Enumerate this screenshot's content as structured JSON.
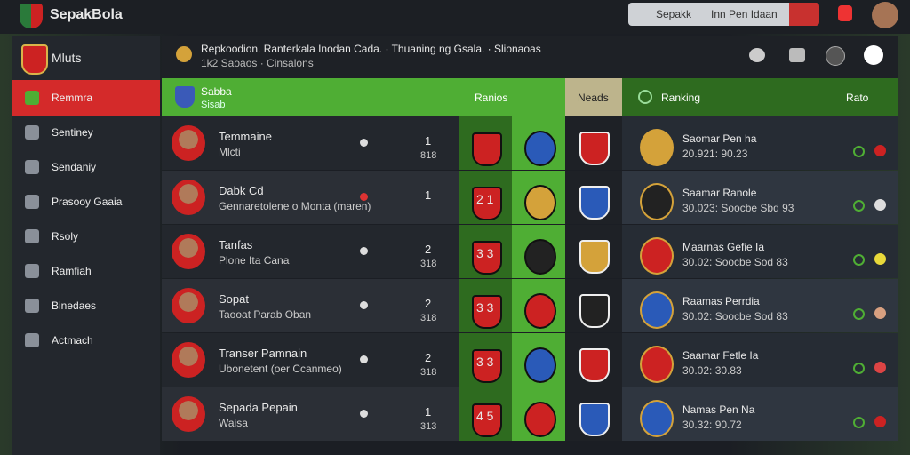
{
  "header": {
    "app_title": "SepakBola",
    "search_left": "Sepakk",
    "search_right": "Inn Pen Idaan"
  },
  "sidebar": {
    "title": "Mluts",
    "items": [
      "Remmra",
      "Sentiney",
      "Sendaniy",
      "Prasooy Gaaia",
      "Rsoly",
      "Ramfiah",
      "Binedaes",
      "Actmach"
    ]
  },
  "info": {
    "line1": "Repkoodion. Ranterkala Inodan Cada. · Thuaning ng Gsala. · Slionaoas",
    "line2": "1k2 Saoaos · Cinsalons"
  },
  "table": {
    "header": {
      "team": "Sabba",
      "team_sub": "Sisab",
      "results": "Ranios",
      "needs": "Neads",
      "ranking": "Ranking",
      "rate": "Rato"
    },
    "rows": [
      {
        "name": "Temmaine",
        "sub": "Mlcti",
        "num_top": "1",
        "num_bottom": "818",
        "score": "",
        "rank_name": "Saomar Pen ha",
        "rank_stats": "20.921: 90.23"
      },
      {
        "name": "Dabk Cd",
        "sub": "Gennaretolene o Monta (maren)",
        "num_top": "1",
        "num_bottom": "",
        "score": "2 1",
        "rank_name": "Saamar Ranole",
        "rank_stats": "30.023: Soocbe Sbd 93"
      },
      {
        "name": "Tanfas",
        "sub": "Plone Ita Cana",
        "num_top": "2",
        "num_bottom": "318",
        "score": "3 3",
        "rank_name": "Maarnas Gefie Ia",
        "rank_stats": "30.02: Soocbe Sod 83"
      },
      {
        "name": "Sopat",
        "sub": "Taooat Parab Oban",
        "num_top": "2",
        "num_bottom": "318",
        "score": "3 3",
        "rank_name": "Raamas Perrdia",
        "rank_stats": "30.02: Soocbe Sod 83"
      },
      {
        "name": "Transer Pamnain",
        "sub": "Ubonetent (oer Ccanmeo)",
        "num_top": "2",
        "num_bottom": "318",
        "score": "3 3",
        "rank_name": "Saamar Fetle Ia",
        "rank_stats": "30.02: 30.83"
      },
      {
        "name": "Sepada Pepain",
        "sub": "Waisa",
        "num_top": "1",
        "num_bottom": "313",
        "score": "4 5",
        "rank_name": "Namas Pen Na",
        "rank_stats": "30.32: 90.72"
      }
    ]
  }
}
